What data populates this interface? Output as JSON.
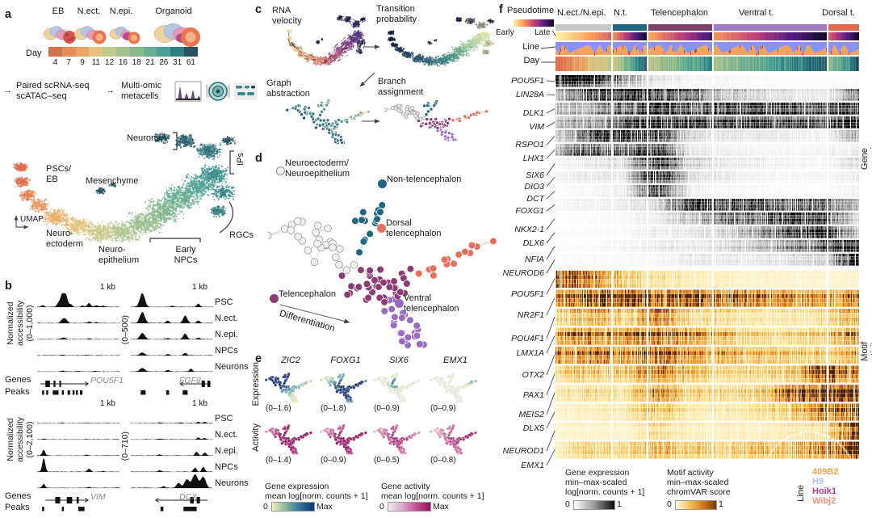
{
  "panel_a": {
    "label": "a",
    "stages": [
      "EB",
      "N.ect.",
      "N.epi.",
      "Organoid"
    ],
    "day_label": "Day",
    "day_ticks": [
      "4",
      "7",
      "9",
      "11",
      "12",
      "16",
      "18",
      "21",
      "26",
      "31",
      "61"
    ],
    "day_colors": [
      "#e06a4d",
      "#e68d5b",
      "#eaa763",
      "#e6c47d",
      "#c2ca8c",
      "#a6c28e",
      "#87b88e",
      "#66ae94",
      "#49a195",
      "#2f7e84",
      "#2b505f"
    ],
    "arrow": "→",
    "workflow_step1": "Paired scRNA-seq\nscATAC–seq",
    "workflow_step2": "Multi-omic\nmetacells",
    "umap_axis": "UMAP",
    "map_labels": {
      "neurons": "Neurons",
      "ips": "IPs",
      "pscs": "PSCs/\nEB",
      "mesenchyme": "Mesenchyme",
      "neuroectoderm": "Neuro-\nectoderm",
      "neuroepithelium": "Neuro-\nepithelium",
      "early_npcs": "Early\nNPCs",
      "rgcs": "RGCs"
    }
  },
  "panel_b": {
    "label": "b",
    "axis1": "Normalized\naccessibility\n(0–1,000)",
    "axis2": "(0–500)",
    "axis3": "Normalized\naccessibility\n(0–2,100)",
    "axis4": "(0–710)",
    "scale_label": "1 kb",
    "row_labels": [
      "PSC",
      "N.ect.",
      "N.epi.",
      "NPCs",
      "Neurons"
    ],
    "genes_label": "Genes",
    "peaks_label": "Peaks",
    "gene_names": [
      "POU5F1",
      "FGF8",
      "VIM",
      "DCX"
    ]
  },
  "panel_c": {
    "label": "c",
    "plot_titles": [
      "RNA\nvelocity",
      "Transition\nprobability",
      "Graph\nabstraction",
      "Branch\nassignment"
    ]
  },
  "panel_d": {
    "label": "d",
    "legend": [
      {
        "name": "Neuroectoderm/\nNeuroepithelium",
        "color": "#a8a8a8",
        "open": true
      },
      {
        "name": "Non-telencephalon",
        "color": "#1f6680",
        "open": false
      },
      {
        "name": "Dorsal\ntelencephalon",
        "color": "#e8705a",
        "open": false
      },
      {
        "name": "Telencephalon",
        "color": "#8c3c74",
        "open": false
      },
      {
        "name": "Ventral\ntelencephalon",
        "color": "#9a6bc1",
        "open": false
      }
    ],
    "arrow_label": "Differentiation"
  },
  "panel_e": {
    "label": "e",
    "genes": [
      "ZIC2",
      "FOXG1",
      "SIX6",
      "EMX1"
    ],
    "row_labels": [
      "Expression",
      "Activity"
    ],
    "expression_ranges": [
      "(0–1.6)",
      "(0–1.8)",
      "(0–0.9)",
      "(0–0.9)"
    ],
    "activity_ranges": [
      "(0–1.4)",
      "(0–0.9)",
      "(0–0.5)",
      "(0–0.8)"
    ],
    "legend_expression": {
      "title": "Gene expression",
      "subtitle": "mean log[norm. counts + 1]",
      "min": "0",
      "max": "Max"
    },
    "legend_activity": {
      "title": "Gene activity",
      "subtitle": "mean log[norm. counts + 1]",
      "min": "0",
      "max": "Max"
    }
  },
  "panel_f": {
    "label": "f",
    "pseudotime_label": "Pseudotime",
    "early": "Early",
    "late": "Late",
    "line_label": "Line",
    "day_label": "Day",
    "groups": [
      {
        "name": "N.ect./N.epi.",
        "color": "#c9c9c9",
        "frac": 0.185,
        "pt": [
          0,
          0.45
        ],
        "day": [
          0,
          0.42
        ]
      },
      {
        "name": "N.t.",
        "color": "#20647f",
        "frac": 0.115,
        "pt": [
          0.3,
          1
        ],
        "day": [
          0.35,
          1
        ]
      },
      {
        "name": "Telencephalon",
        "color": "#7e4069",
        "frac": 0.215,
        "pt": [
          0.25,
          0.85
        ],
        "day": [
          0.4,
          0.88
        ]
      },
      {
        "name": "Ventral t.",
        "color": "#9f7cc4",
        "frac": 0.38,
        "pt": [
          0.3,
          1
        ],
        "day": [
          0.5,
          1
        ]
      },
      {
        "name": "Dorsal t.",
        "color": "#e0694f",
        "frac": 0.105,
        "pt": [
          0.45,
          1
        ],
        "day": [
          0.55,
          1
        ]
      }
    ],
    "side_labels": {
      "expression": "Gene expression",
      "motif": "Motif activity"
    },
    "expression_genes": [
      {
        "name": "POU5F1",
        "profile": [
          0.95,
          0.75,
          0.35,
          0.1,
          0.05,
          0.04,
          0.03,
          0.02,
          0.02,
          0.02
        ]
      },
      {
        "name": "LIN28A",
        "profile": [
          0.3,
          0.75,
          0.85,
          0.8,
          0.6,
          0.35,
          0.2,
          0.15,
          0.1,
          0.55
        ]
      },
      {
        "name": "DLK1",
        "profile": [
          0.3,
          0.35,
          0.6,
          0.85,
          0.7,
          0.7,
          0.75,
          0.7,
          0.65,
          0.85
        ]
      },
      {
        "name": "VIM",
        "profile": [
          0.25,
          0.3,
          0.55,
          0.75,
          0.6,
          0.55,
          0.6,
          0.55,
          0.5,
          0.8
        ]
      },
      {
        "name": "RSPO1",
        "profile": [
          0.15,
          0.55,
          0.75,
          0.6,
          0.15,
          0.1,
          0.1,
          0.08,
          0.05,
          0.3
        ]
      },
      {
        "name": "LHX1",
        "profile": [
          0.3,
          0.65,
          0.5,
          0.7,
          0.1,
          0.08,
          0.05,
          0.05,
          0.05,
          0.1
        ]
      },
      {
        "name": "SIX6",
        "profile": [
          0.05,
          0.1,
          0.15,
          0.75,
          0.2,
          0.1,
          0.08,
          0.05,
          0.05,
          0.15
        ]
      },
      {
        "name": "DIO3",
        "profile": [
          0.05,
          0.1,
          0.1,
          0.8,
          0.15,
          0.1,
          0.05,
          0.05,
          0.05,
          0.1
        ]
      },
      {
        "name": "DCT",
        "profile": [
          0.03,
          0.05,
          0.1,
          0.85,
          0.1,
          0.05,
          0.05,
          0.03,
          0.03,
          0.08
        ]
      },
      {
        "name": "FOXG1",
        "profile": [
          0.05,
          0.08,
          0.1,
          0.2,
          0.8,
          0.75,
          0.7,
          0.65,
          0.6,
          0.3
        ]
      },
      {
        "name": "NKX2-1",
        "profile": [
          0.02,
          0.03,
          0.05,
          0.1,
          0.3,
          0.55,
          0.7,
          0.8,
          0.75,
          0.15
        ]
      },
      {
        "name": "DLX6",
        "profile": [
          0.02,
          0.03,
          0.03,
          0.08,
          0.1,
          0.2,
          0.35,
          0.6,
          0.8,
          0.2
        ]
      },
      {
        "name": "NFIA",
        "profile": [
          0.02,
          0.03,
          0.05,
          0.1,
          0.1,
          0.15,
          0.25,
          0.4,
          0.6,
          0.85
        ]
      },
      {
        "name": "NEUROD6",
        "profile": [
          0.02,
          0.03,
          0.03,
          0.05,
          0.1,
          0.1,
          0.1,
          0.15,
          0.2,
          0.9
        ]
      }
    ],
    "motif_genes": [
      {
        "name": "POU5F1",
        "profile": [
          0.9,
          0.7,
          0.4,
          0.25,
          0.2,
          0.15,
          0.12,
          0.1,
          0.1,
          0.1
        ]
      },
      {
        "name": "NR2F1",
        "profile": [
          0.55,
          0.75,
          0.8,
          0.7,
          0.75,
          0.7,
          0.6,
          0.55,
          0.5,
          0.6
        ]
      },
      {
        "name": "POU4F1",
        "profile": [
          0.25,
          0.45,
          0.3,
          0.6,
          0.3,
          0.25,
          0.2,
          0.2,
          0.25,
          0.5
        ]
      },
      {
        "name": "LMX1A",
        "profile": [
          0.5,
          0.65,
          0.6,
          0.75,
          0.55,
          0.4,
          0.3,
          0.3,
          0.35,
          0.6
        ]
      },
      {
        "name": "OTX2",
        "profile": [
          0.6,
          0.7,
          0.65,
          0.8,
          0.6,
          0.5,
          0.45,
          0.4,
          0.35,
          0.5
        ]
      },
      {
        "name": "PAX1",
        "profile": [
          0.3,
          0.4,
          0.35,
          0.6,
          0.4,
          0.3,
          0.3,
          0.35,
          0.8,
          0.6
        ]
      },
      {
        "name": "MEIS2",
        "profile": [
          0.2,
          0.25,
          0.2,
          0.5,
          0.3,
          0.25,
          0.3,
          0.6,
          0.85,
          0.7
        ]
      },
      {
        "name": "DLX5",
        "profile": [
          0.1,
          0.15,
          0.2,
          0.45,
          0.2,
          0.2,
          0.25,
          0.4,
          0.7,
          0.9
        ]
      },
      {
        "name": "NEUROD1",
        "profile": [
          0.1,
          0.12,
          0.1,
          0.3,
          0.15,
          0.15,
          0.15,
          0.2,
          0.3,
          0.85
        ]
      },
      {
        "name": "EMX1",
        "profile": [
          0.15,
          0.3,
          0.25,
          0.4,
          0.3,
          0.3,
          0.35,
          0.4,
          0.5,
          0.8
        ]
      }
    ],
    "legend_expression": {
      "line1": "Gene expression",
      "line2": "min–max-scaled",
      "line3": "log[norm. counts + 1]",
      "min": "0",
      "max": "1"
    },
    "legend_motif": {
      "line1": "Motif activity",
      "line2": "min–max-scaled",
      "line3": "chromVAR score",
      "min": "0",
      "max": "1"
    },
    "line_legend": {
      "label": "Line",
      "items": [
        {
          "name": "409B2",
          "color": "#f2a254"
        },
        {
          "name": "H9",
          "color": "#a9c5f7"
        },
        {
          "name": "Hoik1",
          "color": "#b53b90"
        },
        {
          "name": "Wibj2",
          "color": "#f5907c"
        }
      ]
    }
  }
}
